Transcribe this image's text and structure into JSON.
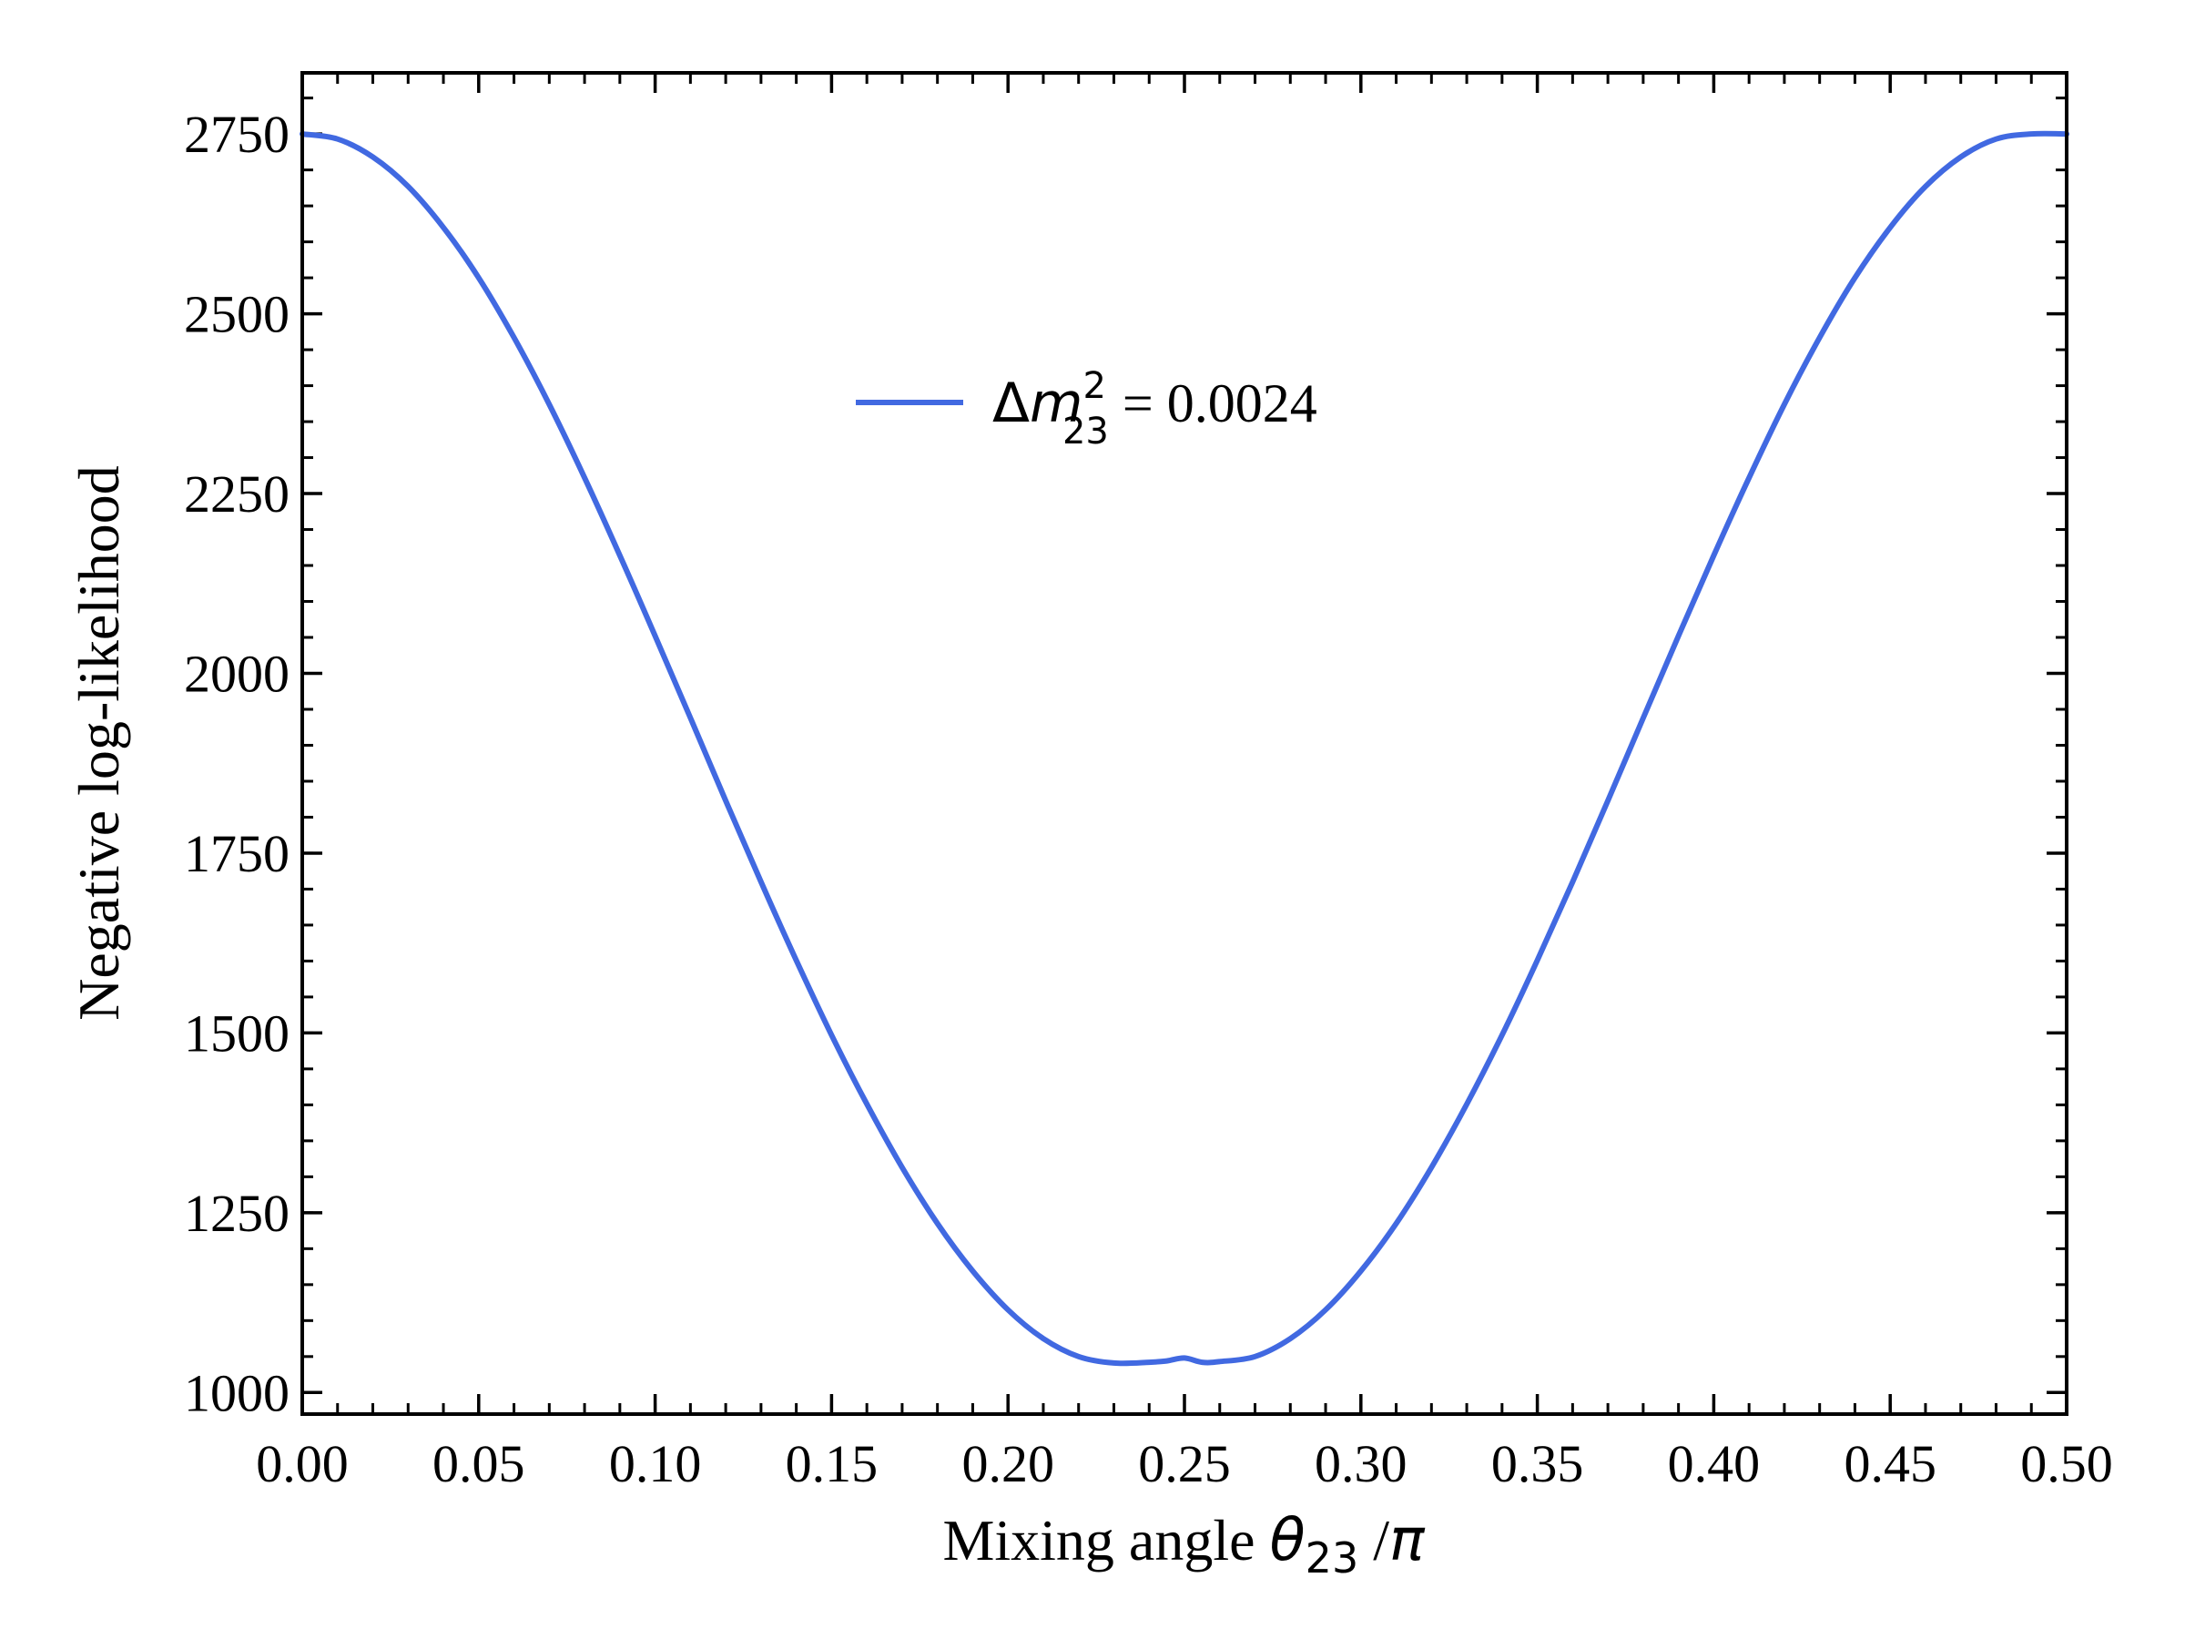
{
  "chart_data": {
    "type": "line",
    "xlabel": {
      "prefix": "Mixing angle ",
      "symbol": "θ",
      "subscript": "23",
      "suffix": " /",
      "pi": "π"
    },
    "ylabel": "Negative log-likelihood",
    "xlim": [
      0.0,
      0.5
    ],
    "ylim": [
      970,
      2835
    ],
    "x_ticks": [
      0.0,
      0.05,
      0.1,
      0.15,
      0.2,
      0.25,
      0.3,
      0.35,
      0.4,
      0.45,
      0.5
    ],
    "x_tick_labels": [
      "0.00",
      "0.05",
      "0.10",
      "0.15",
      "0.20",
      "0.25",
      "0.30",
      "0.35",
      "0.40",
      "0.45",
      "0.50"
    ],
    "y_ticks": [
      1000,
      1250,
      1500,
      1750,
      2000,
      2250,
      2500,
      2750
    ],
    "y_tick_labels": [
      "1000",
      "1250",
      "1500",
      "1750",
      "2000",
      "2250",
      "2500",
      "2750"
    ],
    "x_minor_step": 0.01,
    "y_minor_step": 50,
    "grid": false,
    "legend_position": "upper-center",
    "series": [
      {
        "legend": {
          "delta": "Δ",
          "symbol": "m",
          "superscript": "2",
          "subscript": "23",
          "suffix": " = 0.0024"
        },
        "color": "#4169E1",
        "x": [
          0.0,
          0.01,
          0.02,
          0.03,
          0.04,
          0.05,
          0.06,
          0.07,
          0.08,
          0.09,
          0.1,
          0.11,
          0.12,
          0.13,
          0.14,
          0.15,
          0.16,
          0.17,
          0.18,
          0.19,
          0.2,
          0.21,
          0.22,
          0.23,
          0.24,
          0.245,
          0.25,
          0.255,
          0.26,
          0.27,
          0.28,
          0.29,
          0.3,
          0.31,
          0.32,
          0.33,
          0.34,
          0.35,
          0.36,
          0.37,
          0.38,
          0.39,
          0.4,
          0.41,
          0.42,
          0.43,
          0.44,
          0.45,
          0.46,
          0.47,
          0.48,
          0.49,
          0.5
        ],
        "y": [
          2750,
          2743,
          2718,
          2677,
          2620,
          2550,
          2467,
          2374,
          2272,
          2164,
          2052,
          1938,
          1823,
          1710,
          1601,
          1497,
          1401,
          1313,
          1235,
          1169,
          1115,
          1075,
          1050,
          1041,
          1042,
          1044,
          1048,
          1042,
          1043,
          1050,
          1075,
          1115,
          1169,
          1235,
          1313,
          1401,
          1497,
          1601,
          1710,
          1823,
          1938,
          2052,
          2164,
          2272,
          2374,
          2467,
          2550,
          2620,
          2677,
          2718,
          2743,
          2750,
          2750
        ]
      }
    ]
  }
}
